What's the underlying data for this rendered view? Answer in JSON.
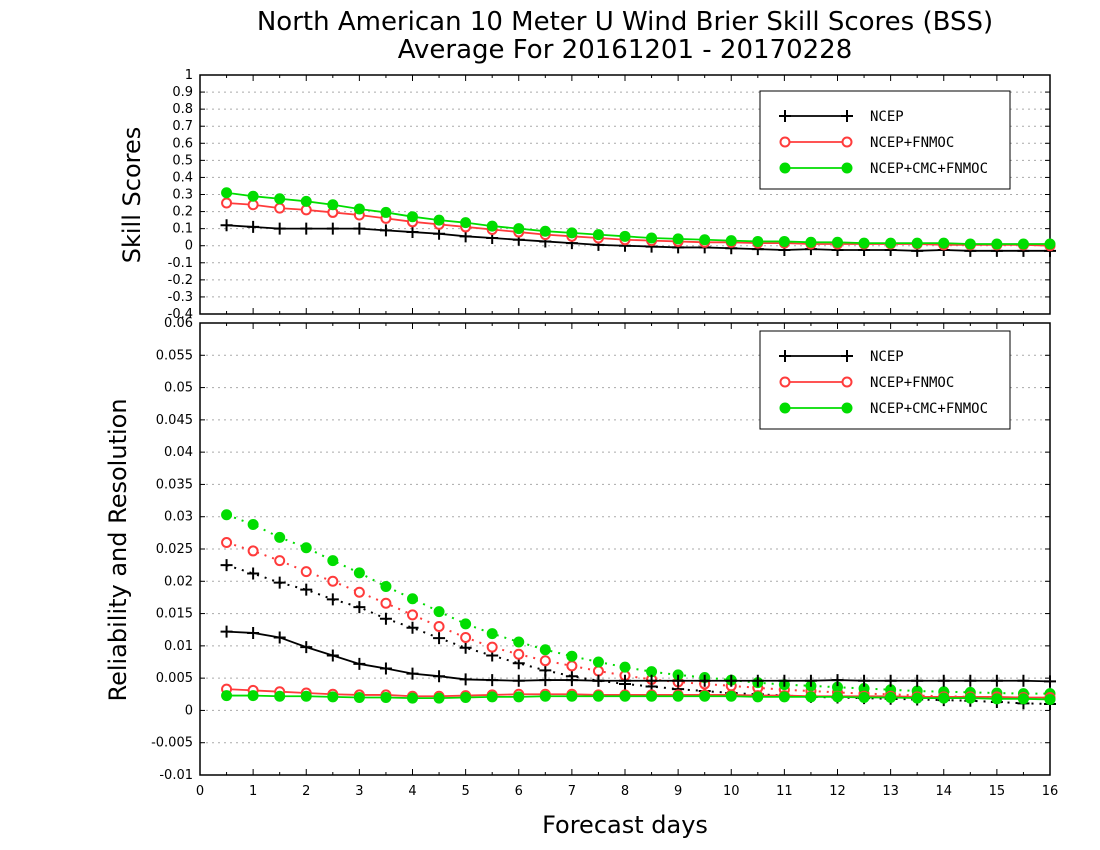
{
  "title_line1": "North American 10 Meter U Wind Brier Skill Scores (BSS)",
  "title_line2": "Average For 20161201 - 20170228",
  "xlabel": "Forecast days",
  "colors": {
    "NCEP": "#000000",
    "NCEP+FNMOC": "#ff3b3b",
    "NCEP+CMC+FNMOC": "#00dd00"
  },
  "chart_data": [
    {
      "type": "line",
      "ylabel": "Skill Scores",
      "xlim": [
        0,
        16
      ],
      "ylim": [
        -0.4,
        1
      ],
      "yticks": [
        "-0.4",
        "-0.3",
        "-0.2",
        "-0.1",
        "0",
        "0.1",
        "0.2",
        "0.3",
        "0.4",
        "0.5",
        "0.6",
        "0.7",
        "0.8",
        "0.9",
        "1"
      ],
      "grid": true,
      "legend": "top-right",
      "x": [
        0.5,
        1,
        1.5,
        2,
        2.5,
        3,
        3.5,
        4,
        4.5,
        5,
        5.5,
        6,
        6.5,
        7,
        7.5,
        8,
        8.5,
        9,
        9.5,
        10,
        10.5,
        11,
        11.5,
        12,
        12.5,
        13,
        13.5,
        14,
        14.5,
        15,
        15.5,
        16
      ],
      "series": [
        {
          "name": "NCEP",
          "marker": "plus",
          "values": [
            0.12,
            0.11,
            0.1,
            0.1,
            0.1,
            0.1,
            0.09,
            0.08,
            0.07,
            0.055,
            0.045,
            0.035,
            0.025,
            0.015,
            0.005,
            0,
            -0.005,
            -0.01,
            -0.01,
            -0.015,
            -0.02,
            -0.025,
            -0.02,
            -0.025,
            -0.025,
            -0.025,
            -0.03,
            -0.025,
            -0.03,
            -0.03,
            -0.03,
            -0.03
          ]
        },
        {
          "name": "NCEP+FNMOC",
          "marker": "open-circle",
          "values": [
            0.25,
            0.24,
            0.22,
            0.21,
            0.195,
            0.18,
            0.16,
            0.14,
            0.125,
            0.11,
            0.095,
            0.08,
            0.065,
            0.055,
            0.045,
            0.035,
            0.03,
            0.025,
            0.02,
            0.02,
            0.015,
            0.015,
            0.01,
            0.01,
            0.01,
            0.01,
            0.01,
            0.005,
            0.005,
            0.005,
            0.005,
            0.0
          ]
        },
        {
          "name": "NCEP+CMC+FNMOC",
          "marker": "filled-circle",
          "values": [
            0.31,
            0.29,
            0.275,
            0.26,
            0.24,
            0.215,
            0.195,
            0.17,
            0.15,
            0.135,
            0.115,
            0.1,
            0.085,
            0.075,
            0.065,
            0.055,
            0.045,
            0.04,
            0.035,
            0.03,
            0.025,
            0.025,
            0.02,
            0.02,
            0.015,
            0.015,
            0.015,
            0.015,
            0.01,
            0.01,
            0.01,
            0.01
          ]
        }
      ]
    },
    {
      "type": "line",
      "ylabel": "Reliability and Resolution",
      "xlim": [
        0,
        16
      ],
      "ylim": [
        -0.01,
        0.06
      ],
      "yticks": [
        "-0.01",
        "-0.005",
        "0",
        "0.005",
        "0.01",
        "0.015",
        "0.02",
        "0.025",
        "0.03",
        "0.035",
        "0.04",
        "0.045",
        "0.05",
        "0.055",
        "0.06"
      ],
      "xticks": [
        "0",
        "1",
        "2",
        "3",
        "4",
        "5",
        "6",
        "7",
        "8",
        "9",
        "10",
        "11",
        "12",
        "13",
        "14",
        "15",
        "16"
      ],
      "grid": true,
      "legend": "top-right",
      "x": [
        0.5,
        1,
        1.5,
        2,
        2.5,
        3,
        3.5,
        4,
        4.5,
        5,
        5.5,
        6,
        6.5,
        7,
        7.5,
        8,
        8.5,
        9,
        9.5,
        10,
        10.5,
        11,
        11.5,
        12,
        12.5,
        13,
        13.5,
        14,
        14.5,
        15,
        15.5,
        16
      ],
      "series": [
        {
          "name": "NCEP",
          "style": "dotted",
          "marker": "plus",
          "values": [
            0.0225,
            0.0212,
            0.0198,
            0.0187,
            0.0172,
            0.016,
            0.0142,
            0.0128,
            0.0112,
            0.0097,
            0.0085,
            0.0073,
            0.0062,
            0.0053,
            0.0046,
            0.0041,
            0.0037,
            0.0033,
            0.003,
            0.0027,
            0.0025,
            0.0023,
            0.0021,
            0.002,
            0.0019,
            0.0018,
            0.0017,
            0.0016,
            0.0015,
            0.0013,
            0.0011,
            0.001
          ]
        },
        {
          "name": "NCEP+FNMOC",
          "style": "dotted",
          "marker": "open-circle",
          "values": [
            0.026,
            0.0247,
            0.0232,
            0.0215,
            0.02,
            0.0183,
            0.0166,
            0.0148,
            0.013,
            0.0113,
            0.0098,
            0.0087,
            0.0077,
            0.0069,
            0.0061,
            0.0054,
            0.0048,
            0.0044,
            0.0041,
            0.0038,
            0.0035,
            0.0032,
            0.003,
            0.0028,
            0.0026,
            0.0025,
            0.0023,
            0.0022,
            0.0021,
            0.002,
            0.0019,
            0.0018
          ]
        },
        {
          "name": "NCEP+CMC+FNMOC",
          "style": "dotted",
          "marker": "filled-circle",
          "values": [
            0.0303,
            0.0288,
            0.0268,
            0.0252,
            0.0232,
            0.0213,
            0.0192,
            0.0173,
            0.0153,
            0.0134,
            0.0119,
            0.0106,
            0.0094,
            0.0084,
            0.0075,
            0.0067,
            0.006,
            0.0055,
            0.0051,
            0.0047,
            0.0043,
            0.004,
            0.0038,
            0.0036,
            0.0034,
            0.0032,
            0.003,
            0.0029,
            0.0028,
            0.0027,
            0.0026,
            0.0026
          ]
        },
        {
          "name": "NCEP",
          "style": "solid",
          "marker": "plus",
          "values": [
            0.0122,
            0.012,
            0.0113,
            0.0098,
            0.0085,
            0.0072,
            0.0065,
            0.0057,
            0.0053,
            0.0048,
            0.0047,
            0.0046,
            0.0047,
            0.0047,
            0.0046,
            0.0046,
            0.0046,
            0.0046,
            0.0046,
            0.0046,
            0.0046,
            0.0046,
            0.0046,
            0.0047,
            0.0046,
            0.0046,
            0.0046,
            0.0046,
            0.0046,
            0.0046,
            0.0046,
            0.0045
          ]
        },
        {
          "name": "NCEP+FNMOC",
          "style": "solid",
          "marker": "open-circle",
          "values": [
            0.0033,
            0.0031,
            0.0029,
            0.0027,
            0.0025,
            0.0024,
            0.0024,
            0.0022,
            0.0022,
            0.0023,
            0.0024,
            0.0025,
            0.0025,
            0.0025,
            0.0024,
            0.0024,
            0.0024,
            0.0024,
            0.0024,
            0.0024,
            0.0023,
            0.0023,
            0.0022,
            0.0022,
            0.0022,
            0.0022,
            0.0021,
            0.0021,
            0.0021,
            0.0021,
            0.002,
            0.002
          ]
        },
        {
          "name": "NCEP+CMC+FNMOC",
          "style": "solid",
          "marker": "filled-circle",
          "values": [
            0.0023,
            0.0023,
            0.0022,
            0.0022,
            0.0021,
            0.002,
            0.002,
            0.0019,
            0.0019,
            0.002,
            0.0021,
            0.0021,
            0.0022,
            0.0022,
            0.0022,
            0.0022,
            0.0022,
            0.0022,
            0.0022,
            0.0022,
            0.0021,
            0.0021,
            0.0021,
            0.0021,
            0.002,
            0.002,
            0.0019,
            0.0019,
            0.0019,
            0.0018,
            0.0018,
            0.0017
          ]
        }
      ]
    }
  ]
}
